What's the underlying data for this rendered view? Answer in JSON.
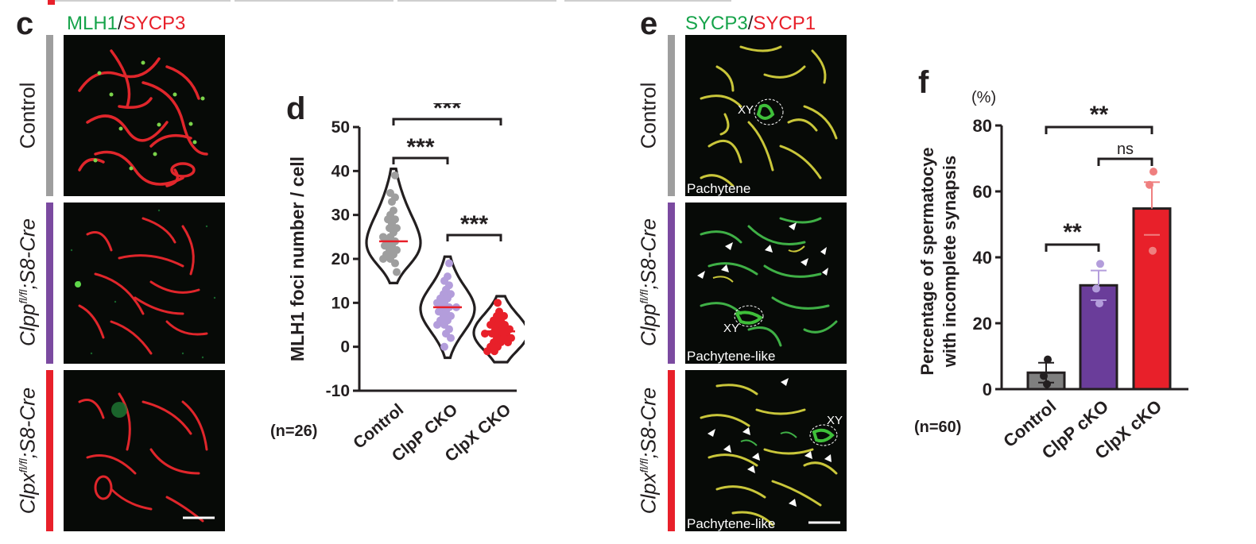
{
  "panel_c": {
    "letter": "c",
    "title_ch1": "MLH1",
    "title_sep": "/",
    "title_ch2": "SYCP3",
    "rows": [
      {
        "label": "Control",
        "bar_color": "#9e9e9e"
      },
      {
        "label_gene": "Clpp",
        "label_sup": "fl/fl",
        "label_rest": ";S8-Cre",
        "bar_color": "#7b4aa0"
      },
      {
        "label_gene": "Clpx",
        "label_sup": "fl/fl",
        "label_rest": ";S8-Cre",
        "bar_color": "#e8202a"
      }
    ]
  },
  "panel_e": {
    "letter": "e",
    "title_ch1": "SYCP3",
    "title_sep": "/",
    "title_ch2": "SYCP1",
    "rows": [
      {
        "label": "Control",
        "stage": "Pachytene",
        "xy": "XY",
        "bar_color": "#9e9e9e"
      },
      {
        "label_gene": "Clpp",
        "label_sup": "fl/fl",
        "label_rest": ";S8-Cre",
        "stage": "Pachytene-like",
        "xy": "XY",
        "bar_color": "#7b4aa0"
      },
      {
        "label_gene": "Clpx",
        "label_sup": "fl/fl",
        "label_rest": ";S8-Cre",
        "stage": "Pachytene-like",
        "xy": "XY",
        "bar_color": "#e8202a"
      }
    ]
  },
  "panel_d": {
    "letter": "d",
    "n_label": "(n=26)",
    "sig": [
      "***",
      "***",
      "***"
    ],
    "chart_data": {
      "type": "violin",
      "ylabel": "MLH1 foci number / cell",
      "ylim": [
        -10,
        50
      ],
      "yticks": [
        -10,
        0,
        10,
        20,
        30,
        40,
        50
      ],
      "categories": [
        "Control",
        "ClpP CKO",
        "ClpX CKO"
      ],
      "colors": [
        "#9e9e9e",
        "#b39ddb",
        "#e8202a"
      ],
      "medians": [
        24,
        9,
        3.5
      ],
      "points": [
        [
          39,
          35,
          34,
          33,
          31,
          30,
          29,
          29,
          28,
          27,
          27,
          26,
          25,
          25,
          24,
          24,
          23,
          23,
          22,
          22,
          21,
          21,
          20,
          20,
          19,
          17
        ],
        [
          19,
          16,
          15,
          14,
          13,
          12,
          12,
          11,
          11,
          10,
          10,
          9,
          9,
          9,
          8,
          8,
          7,
          7,
          6,
          6,
          5,
          5,
          4,
          3,
          2,
          0
        ],
        [
          10,
          8,
          7,
          7,
          6,
          6,
          5,
          5,
          5,
          4,
          4,
          4,
          3,
          3,
          3,
          3,
          2,
          2,
          2,
          1,
          1,
          1,
          0,
          0,
          -1,
          -1
        ]
      ],
      "comparisons": [
        {
          "from": "Control",
          "to": "ClpP CKO",
          "label": "***"
        },
        {
          "from": "Control",
          "to": "ClpX CKO",
          "label": "***"
        },
        {
          "from": "ClpP CKO",
          "to": "ClpX CKO",
          "label": "***"
        }
      ]
    }
  },
  "panel_f": {
    "letter": "f",
    "unit": "(%)",
    "n_label": "(n=60)",
    "ylabel_line1": "Percentage of spermatocye",
    "ylabel_line2": "with incomplete synapsis",
    "chart_data": {
      "type": "bar",
      "categories": [
        "Control",
        "ClpP cKO",
        "ClpX cKO"
      ],
      "values": [
        5,
        31.5,
        54.8
      ],
      "errors": [
        3,
        4.5,
        8
      ],
      "points": [
        [
          9,
          4,
          1.5
        ],
        [
          38,
          30.5,
          26
        ],
        [
          66,
          62,
          42
        ]
      ],
      "colors": [
        "#7f7f7f",
        "#6a3d9a",
        "#e8202a"
      ],
      "point_colors": [
        "#231f20",
        "#b39ddb",
        "#ef7f7f"
      ],
      "ylim": [
        0,
        80
      ],
      "yticks": [
        0,
        20,
        40,
        60,
        80
      ],
      "comparisons": [
        {
          "from": "Control",
          "to": "ClpX cKO",
          "label": "**"
        },
        {
          "from": "ClpP cKO",
          "to": "ClpX cKO",
          "label": "ns"
        },
        {
          "from": "Control",
          "to": "ClpP cKO",
          "label": "**"
        }
      ]
    }
  }
}
